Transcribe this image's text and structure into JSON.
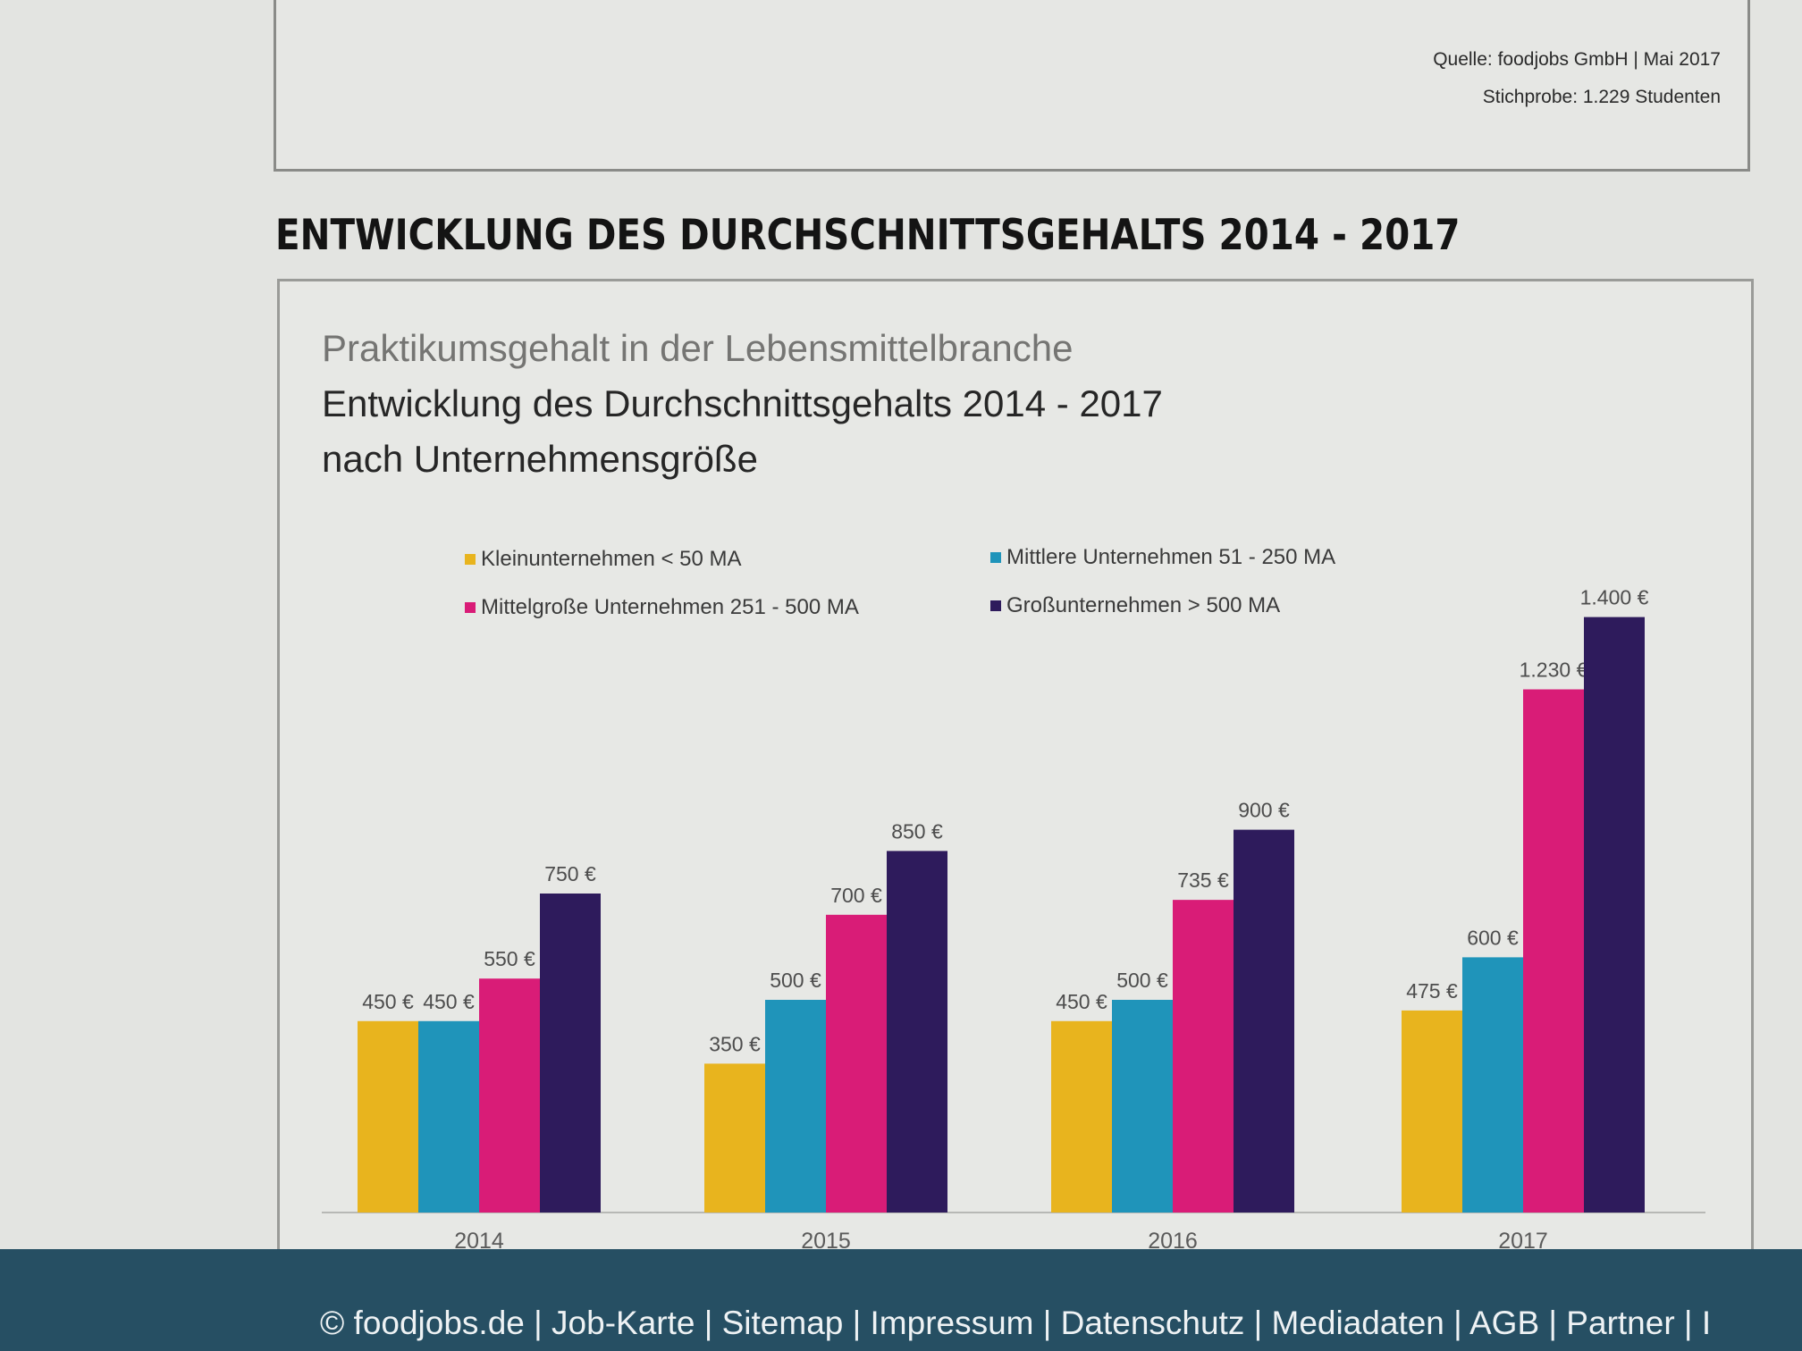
{
  "source": {
    "line1": "Quelle: foodjobs GmbH | Mai 2017",
    "line2": "Stichprobe: 1.229 Studenten"
  },
  "section_heading": "ENTWICKLUNG DES DURCHSCHNITTSGEHALTS 2014 - 2017",
  "footer": {
    "text": "© foodjobs.de | Job-Karte | Sitemap | Impressum | Datenschutz | Mediadaten | AGB | Partner | I"
  },
  "colors": {
    "series": [
      "#e8b41e",
      "#1f94ba",
      "#d91c77",
      "#2e1b5c"
    ]
  },
  "chart_data": {
    "type": "bar",
    "title": "Praktikumsgehalt in der Lebensmittelbranche",
    "subtitle": "Entwicklung des Durchschnittsgehalts 2014 - 2017",
    "subtitle2": "nach Unternehmensgröße",
    "categories": [
      "2014",
      "2015",
      "2016",
      "2017"
    ],
    "unit": "€",
    "ylim": [
      0,
      1400
    ],
    "grid": false,
    "legend_position": "top",
    "series": [
      {
        "name": "Kleinunternehmen < 50 MA",
        "values": [
          450,
          350,
          450,
          475
        ],
        "labels": [
          "450 €",
          "350 €",
          "450 €",
          "475 €"
        ]
      },
      {
        "name": "Mittlere Unternehmen 51 - 250 MA",
        "values": [
          450,
          500,
          500,
          600
        ],
        "labels": [
          "450 €",
          "500 €",
          "500 €",
          "600 €"
        ]
      },
      {
        "name": "Mittelgroße Unternehmen 251 - 500 MA",
        "values": [
          550,
          700,
          735,
          1230
        ],
        "labels": [
          "550 €",
          "700 €",
          "735 €",
          "1.230 €"
        ]
      },
      {
        "name": "Großunternehmen > 500 MA",
        "values": [
          750,
          850,
          900,
          1400
        ],
        "labels": [
          "750 €",
          "850 €",
          "900 €",
          "1.400 €"
        ]
      }
    ]
  }
}
